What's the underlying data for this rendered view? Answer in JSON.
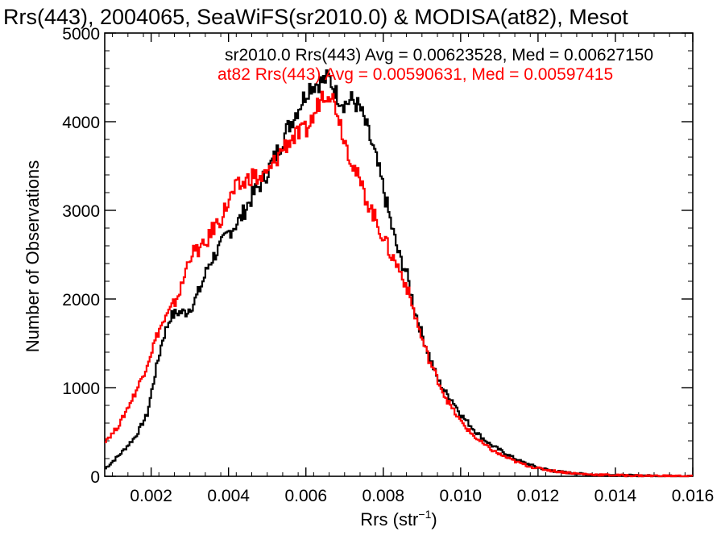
{
  "chart_data": {
    "type": "line",
    "title": "Rrs(443), 2004065, SeaWiFS(sr2010.0) & MODISA(at82), Mesot",
    "xlabel": "Rrs (str",
    "xlabel_sup": "−1",
    "xlabel_end": ")",
    "ylabel": "Number of Observations",
    "xlim": [
      0.0008,
      0.016
    ],
    "ylim": [
      0,
      5000
    ],
    "x_ticks": [
      "0.002",
      "0.004",
      "0.006",
      "0.008",
      "0.010",
      "0.012",
      "0.014",
      "0.016"
    ],
    "x_tick_values": [
      0.002,
      0.004,
      0.006,
      0.008,
      0.01,
      0.012,
      0.014,
      0.016
    ],
    "y_ticks": [
      "0",
      "1000",
      "2000",
      "3000",
      "4000",
      "5000"
    ],
    "y_tick_values": [
      0,
      1000,
      2000,
      3000,
      4000,
      5000
    ],
    "grid": false,
    "legend_position": "top-right",
    "series": [
      {
        "name": "sr2010.0",
        "stats_label": "sr2010.0 Rrs(443) Avg = 0.00623528, Med = 0.00627150",
        "color": "#000000",
        "x": [
          0.0008,
          0.0012,
          0.0016,
          0.0019,
          0.0021,
          0.0023,
          0.0025,
          0.0027,
          0.0029,
          0.0031,
          0.0033,
          0.0035,
          0.0038,
          0.004,
          0.0043,
          0.0046,
          0.0049,
          0.0052,
          0.0055,
          0.0058,
          0.0061,
          0.0064,
          0.0066,
          0.0068,
          0.007,
          0.0072,
          0.0074,
          0.0076,
          0.0078,
          0.008,
          0.0082,
          0.0084,
          0.0086,
          0.0088,
          0.009,
          0.0092,
          0.0094,
          0.0096,
          0.0098,
          0.01,
          0.0102,
          0.0104,
          0.0106,
          0.0108,
          0.011,
          0.0112,
          0.0114,
          0.0116,
          0.0118,
          0.012,
          0.0122,
          0.0124,
          0.0126,
          0.0128,
          0.013,
          0.0134,
          0.0138,
          0.0142,
          0.0146,
          0.015,
          0.0155,
          0.016
        ],
        "y": [
          80,
          250,
          450,
          700,
          1150,
          1550,
          1800,
          1850,
          1850,
          1950,
          2150,
          2400,
          2600,
          2750,
          2900,
          3150,
          3350,
          3600,
          3900,
          4150,
          4400,
          4450,
          4500,
          4300,
          4200,
          4250,
          4150,
          3900,
          3600,
          3250,
          2850,
          2500,
          2300,
          1900,
          1600,
          1350,
          1100,
          950,
          850,
          700,
          600,
          500,
          420,
          350,
          300,
          250,
          200,
          160,
          130,
          100,
          80,
          60,
          50,
          40,
          30,
          20,
          15,
          10,
          8,
          5,
          3,
          2
        ]
      },
      {
        "name": "at82",
        "stats_label": "at82 Rrs(443) Avg = 0.00590631, Med = 0.00597415",
        "color": "#ff0000",
        "x": [
          0.0008,
          0.001,
          0.0012,
          0.0014,
          0.0016,
          0.0018,
          0.002,
          0.0022,
          0.0024,
          0.0026,
          0.0028,
          0.003,
          0.0032,
          0.0034,
          0.0036,
          0.0038,
          0.004,
          0.0042,
          0.0044,
          0.0046,
          0.0048,
          0.005,
          0.0052,
          0.0054,
          0.0056,
          0.0058,
          0.006,
          0.0062,
          0.0064,
          0.0066,
          0.0068,
          0.007,
          0.0072,
          0.0074,
          0.0076,
          0.0078,
          0.008,
          0.0082,
          0.0084,
          0.0086,
          0.0088,
          0.009,
          0.0092,
          0.0094,
          0.0096,
          0.0098,
          0.01,
          0.0102,
          0.0104,
          0.0106,
          0.0108,
          0.011,
          0.0112,
          0.0114,
          0.0116,
          0.0118,
          0.012,
          0.0122,
          0.0124,
          0.0126,
          0.0128,
          0.013,
          0.0134,
          0.0138,
          0.0142,
          0.0146,
          0.015,
          0.0155,
          0.016
        ],
        "y": [
          400,
          480,
          600,
          780,
          950,
          1150,
          1400,
          1650,
          1800,
          1950,
          2150,
          2500,
          2550,
          2600,
          2800,
          2900,
          3100,
          3250,
          3300,
          3400,
          3350,
          3400,
          3550,
          3700,
          3800,
          3850,
          3900,
          4050,
          4300,
          4350,
          4150,
          3800,
          3550,
          3300,
          3100,
          2900,
          2700,
          2500,
          2350,
          2150,
          1850,
          1550,
          1300,
          1100,
          900,
          750,
          620,
          520,
          430,
          360,
          300,
          250,
          210,
          170,
          140,
          110,
          90,
          75,
          60,
          50,
          40,
          30,
          20,
          15,
          10,
          7,
          5,
          3,
          2
        ]
      }
    ]
  }
}
